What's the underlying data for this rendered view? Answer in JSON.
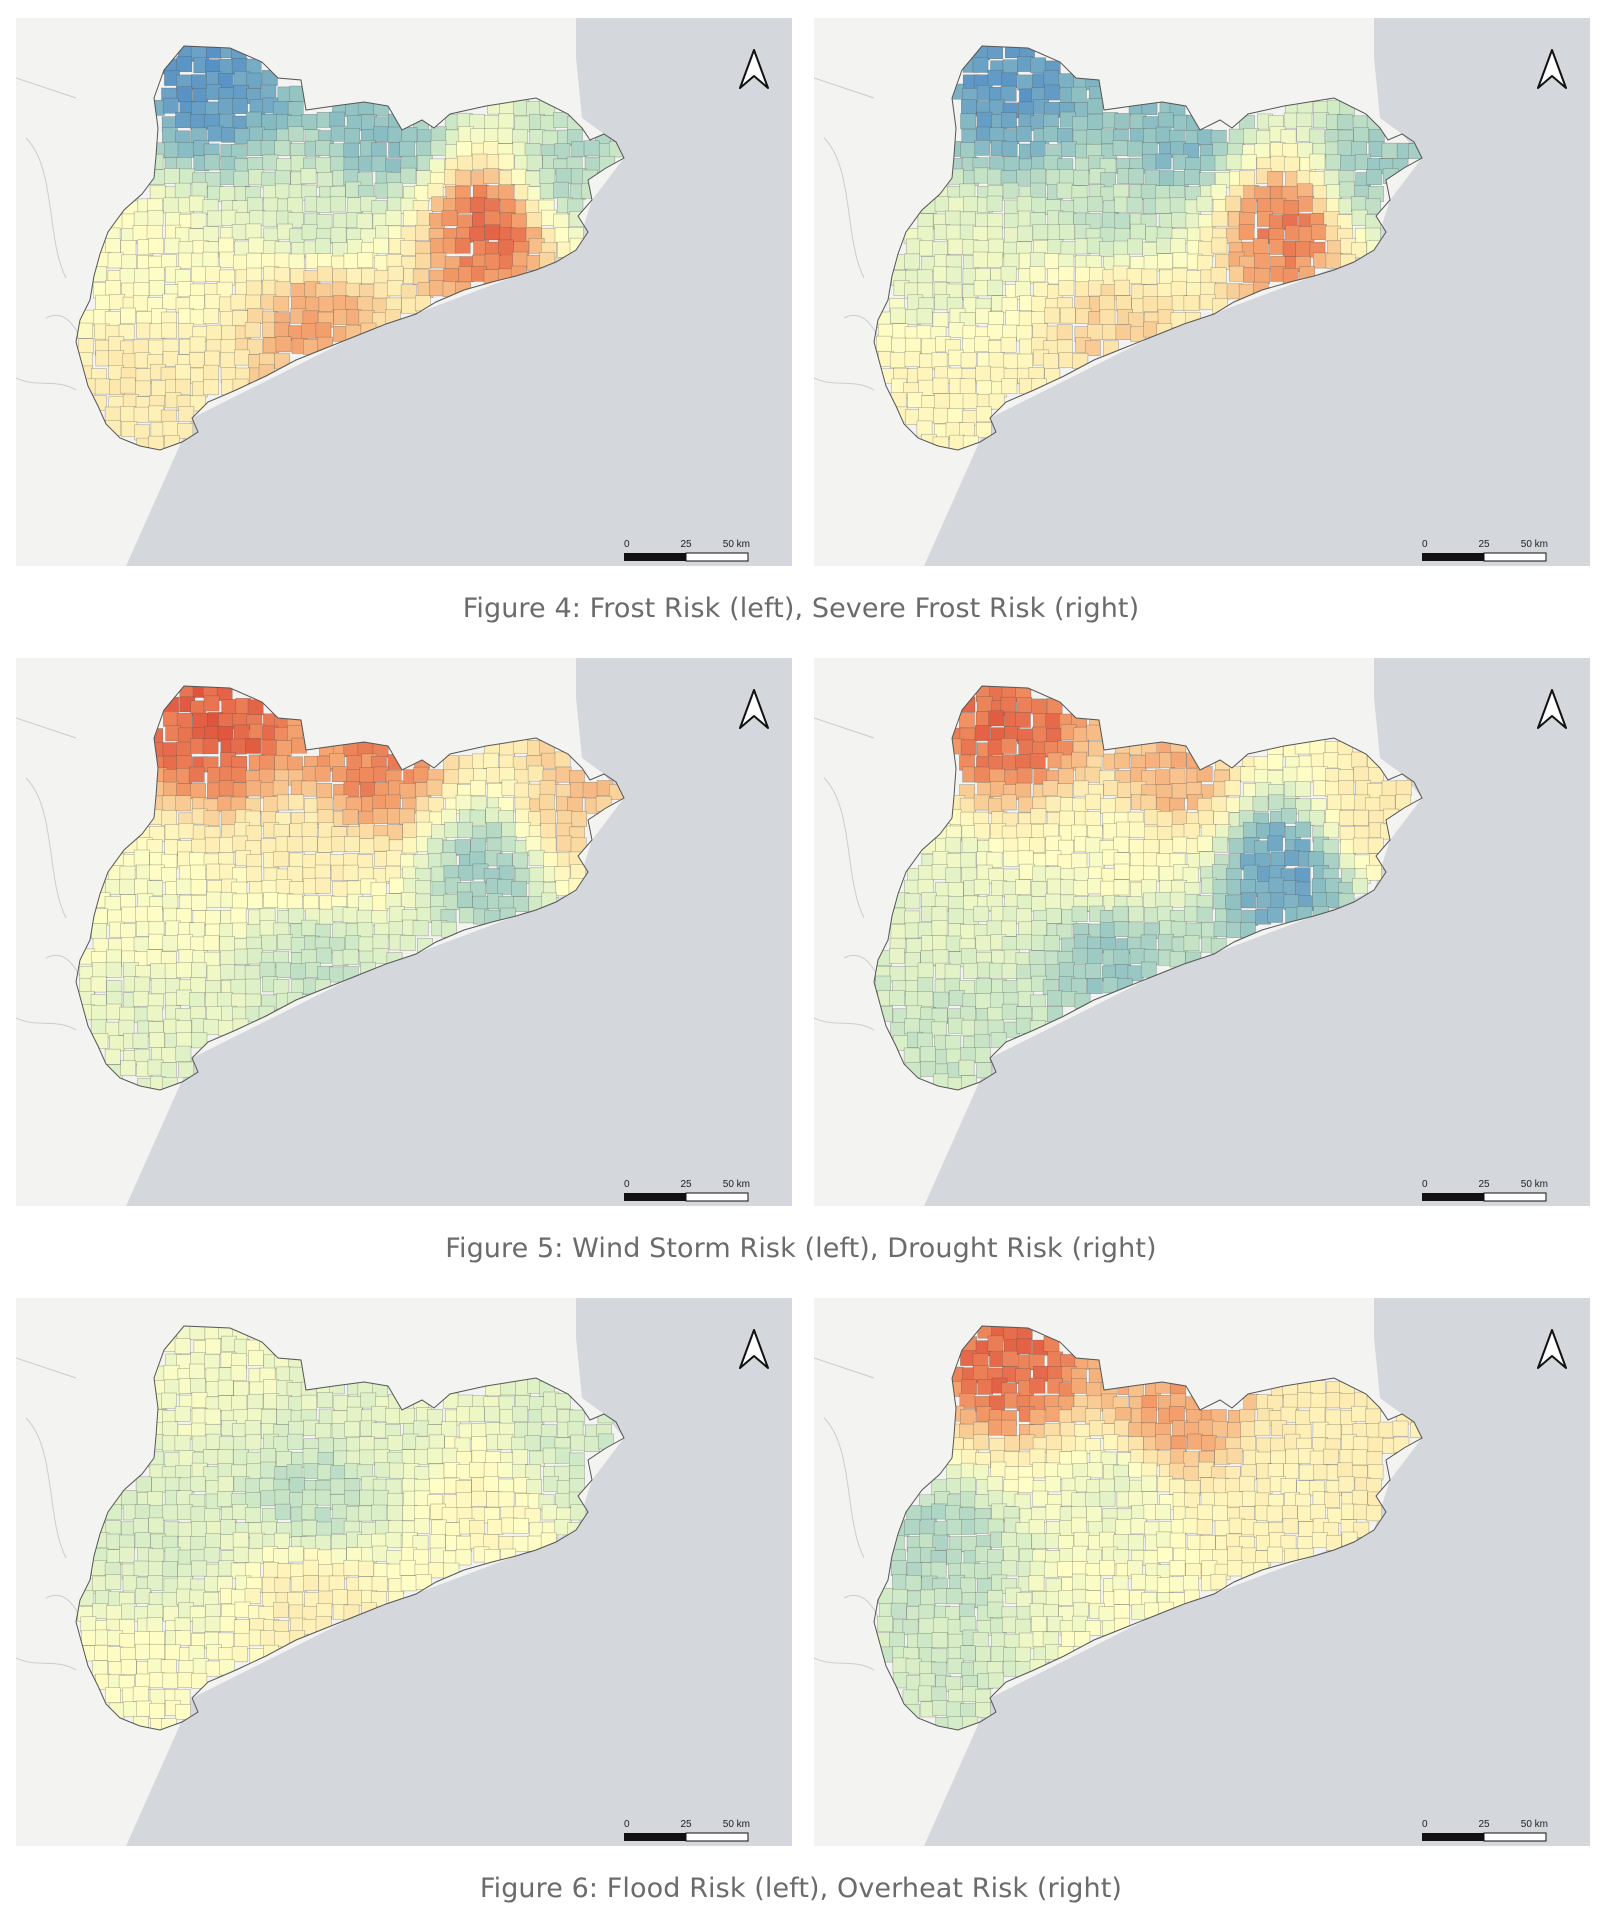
{
  "figures": [
    {
      "caption": "Figure 4: Frost Risk (left), Severe Frost Risk (right)",
      "maps": [
        {
          "id": "frost",
          "stops": [
            0.06,
            0.16,
            0.26,
            0.36,
            0.5,
            0.64,
            0.8,
            0.9
          ]
        },
        {
          "id": "severe-frost",
          "stops": [
            0.07,
            0.15,
            0.22,
            0.3,
            0.42,
            0.56,
            0.72,
            0.88
          ]
        }
      ]
    },
    {
      "caption": "Figure 5: Wind Storm Risk (left), Drought Risk (right)",
      "maps": [
        {
          "id": "wind-storm",
          "stops": [
            0.92,
            0.86,
            0.74,
            0.62,
            0.48,
            0.4,
            0.3,
            0.22
          ]
        },
        {
          "id": "drought",
          "stops": [
            0.9,
            0.78,
            0.64,
            0.5,
            0.4,
            0.32,
            0.2,
            0.08
          ]
        }
      ]
    },
    {
      "caption": "Figure 6: Flood Risk (left), Overheat Risk (right)",
      "maps": [
        {
          "id": "flood",
          "stops": [
            0.46,
            0.4,
            0.34,
            0.28,
            0.36,
            0.5,
            0.62,
            0.54
          ]
        },
        {
          "id": "overheat",
          "stops": [
            0.9,
            0.82,
            0.62,
            0.42,
            0.26,
            0.34,
            0.48,
            0.58
          ]
        }
      ]
    }
  ],
  "scale_bar": {
    "tick_0": "0",
    "tick_25": "25",
    "tick_50": "50 km"
  },
  "north_arrow": "north-arrow-icon",
  "colors": {
    "risk_high": "#d73027",
    "risk_mid_high": "#f29a68",
    "risk_mid_low": "#fde9b0",
    "risk_neutral": "#fffec6",
    "risk_low_mid": "#d4ecc7",
    "risk_low": "#8fc1c3",
    "risk_lowest": "#4a86c6",
    "sea": "#d4d8dc",
    "land": "#f3f3f1"
  }
}
